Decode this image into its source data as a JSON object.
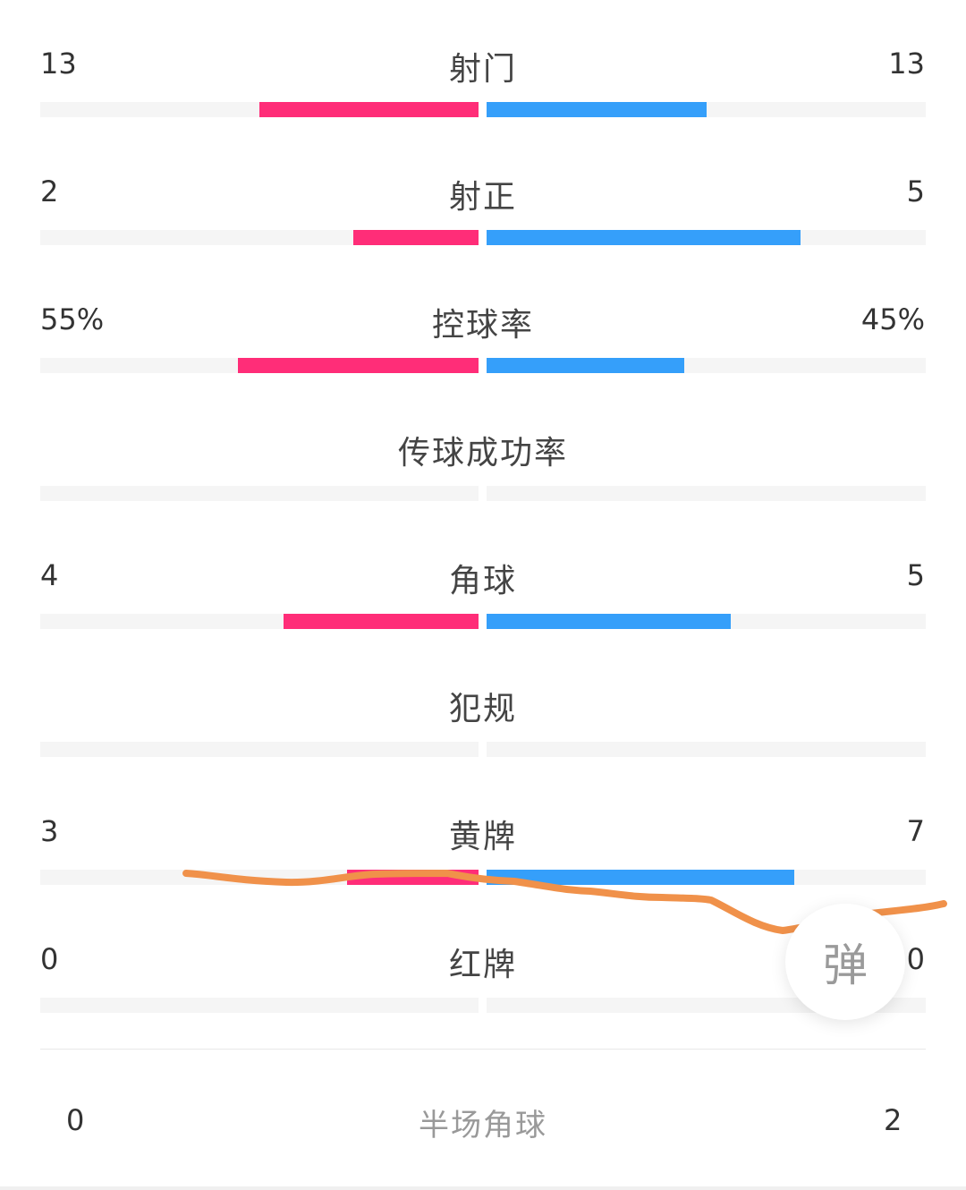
{
  "colors": {
    "home": "#ff2d78",
    "away": "#359ffa",
    "track": "#f5f5f5",
    "annotation": "#f0914a"
  },
  "stats": [
    {
      "label": "射门",
      "home": "13",
      "away": "13",
      "home_share": 0.5,
      "away_share": 0.5
    },
    {
      "label": "射正",
      "home": "2",
      "away": "5",
      "home_share": 0.2857,
      "away_share": 0.7143
    },
    {
      "label": "控球率",
      "home": "55%",
      "away": "45%",
      "home_share": 0.55,
      "away_share": 0.45
    },
    {
      "label": "传球成功率",
      "home": "",
      "away": "",
      "home_share": 0,
      "away_share": 0
    },
    {
      "label": "角球",
      "home": "4",
      "away": "5",
      "home_share": 0.4444,
      "away_share": 0.5556
    },
    {
      "label": "犯规",
      "home": "",
      "away": "",
      "home_share": 0,
      "away_share": 0
    },
    {
      "label": "黄牌",
      "home": "3",
      "away": "7",
      "home_share": 0.3,
      "away_share": 0.7
    },
    {
      "label": "红牌",
      "home": "0",
      "away": "0",
      "home_share": 0,
      "away_share": 0
    }
  ],
  "half_corners": {
    "label": "半场角球",
    "home": "0",
    "away": "2"
  },
  "danmu_button": {
    "label": "弹"
  }
}
